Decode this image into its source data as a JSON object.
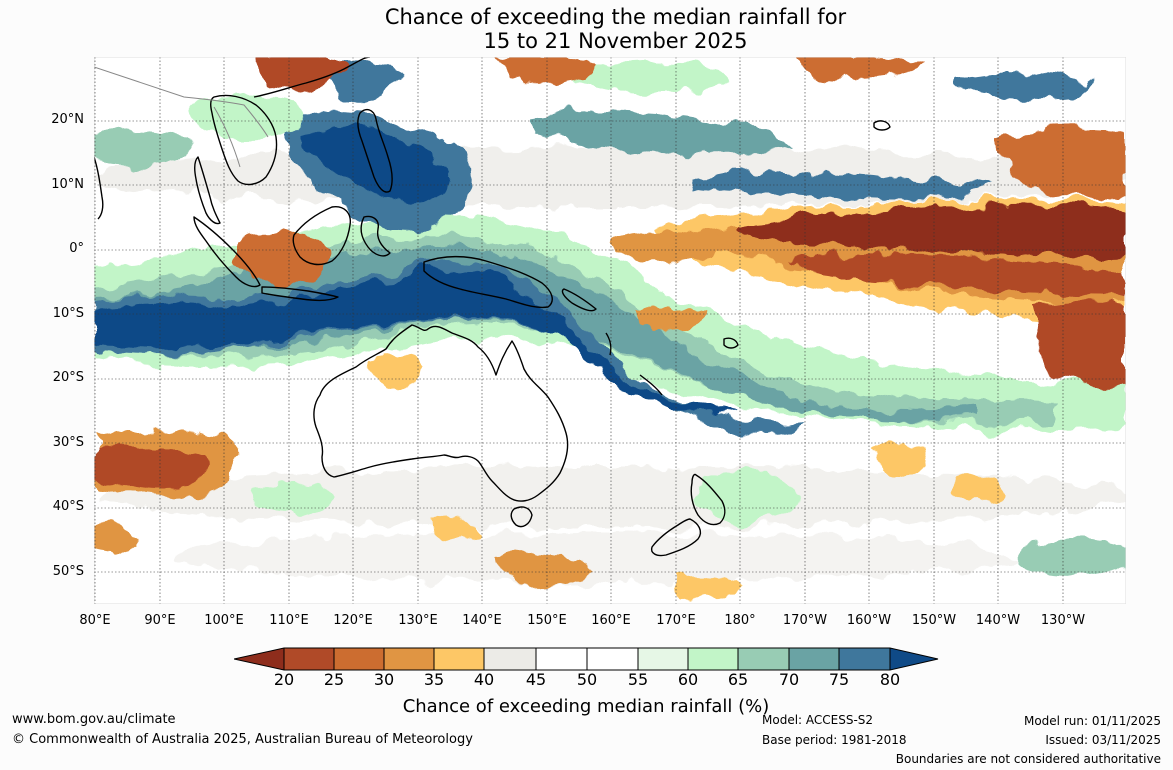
{
  "title": {
    "line1": "Chance of exceeding the median rainfall for",
    "line2": "15 to 21 November 2025"
  },
  "map": {
    "lat_labels": [
      "20°N",
      "10°N",
      "0°",
      "10°S",
      "20°S",
      "30°S",
      "40°S",
      "50°S"
    ],
    "lon_labels": [
      "80°E",
      "90°E",
      "100°E",
      "110°E",
      "120°E",
      "130°E",
      "140°E",
      "150°E",
      "160°E",
      "170°E",
      "180°",
      "170°W",
      "160°W",
      "150°W",
      "140°W",
      "130°W"
    ],
    "legend_colors": [
      "#8e2d1c",
      "#b04a28",
      "#cc6d30",
      "#e09543",
      "#fdc766",
      "#ecebe7",
      "#ffffff",
      "#ffffff",
      "#e6f7e6",
      "#c2f5c8",
      "#98ccb4",
      "#6aa3a4",
      "#3f779c",
      "#0f4a87"
    ]
  },
  "colorbar": {
    "labels": [
      "20",
      "25",
      "30",
      "35",
      "40",
      "45",
      "50",
      "55",
      "60",
      "65",
      "70",
      "75",
      "80"
    ],
    "title": "Chance of exceeding median rainfall (%)"
  },
  "footer": {
    "website": "www.bom.gov.au/climate",
    "copyright": "© Commonwealth of Australia 2025, Australian Bureau of Meteorology",
    "model": "Model: ACCESS-S2",
    "base_period": "Base period: 1981-2018",
    "model_run": "Model run: 01/11/2025",
    "issued": "Issued: 03/11/2025",
    "disclaimer": "Boundaries are not considered authoritative"
  }
}
